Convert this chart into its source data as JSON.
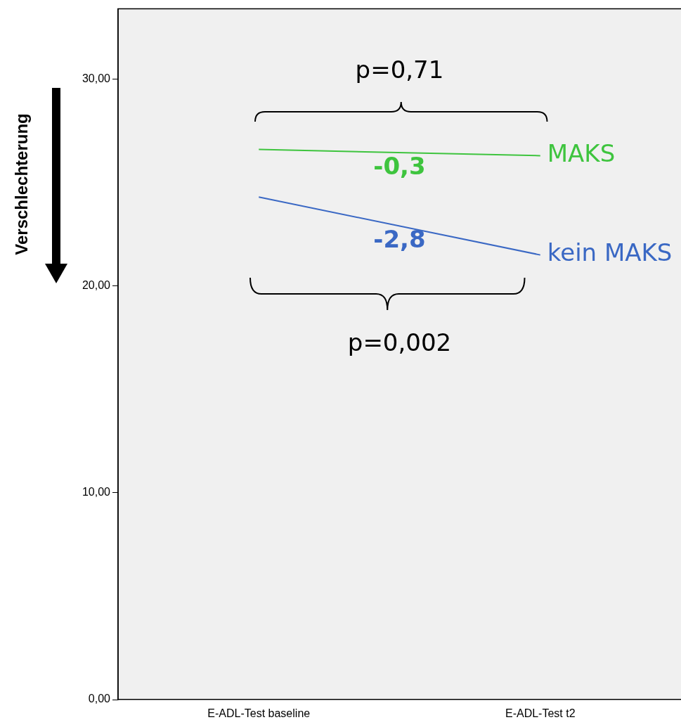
{
  "chart_data": {
    "type": "line",
    "ylabel": "Verschlechterung",
    "categories": [
      "E-ADL-Test baseline",
      "E-ADL-Test t2"
    ],
    "series": [
      {
        "name": "MAKS",
        "color": "#3ec43e",
        "values": [
          26.6,
          26.3
        ]
      },
      {
        "name": "kein MAKS",
        "color": "#3a68c4",
        "values": [
          24.3,
          21.5
        ]
      }
    ],
    "ylim": [
      0,
      33.4
    ],
    "yticks": [
      {
        "value": 0,
        "label": "0,00"
      },
      {
        "value": 10,
        "label": "10,00"
      },
      {
        "value": 20,
        "label": "20,00"
      },
      {
        "value": 30,
        "label": "30,00"
      }
    ],
    "annotations": [
      "p=0,71",
      "-0,3",
      "-2,8",
      "p=0,002"
    ],
    "grid": false,
    "legend": false,
    "marker": "none",
    "line_style": "solid"
  }
}
